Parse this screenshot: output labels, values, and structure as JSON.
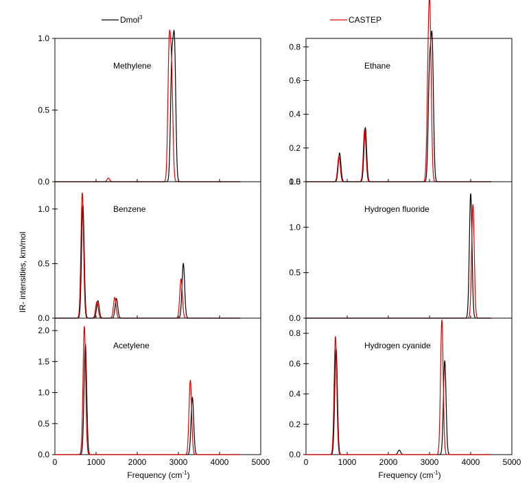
{
  "legend": {
    "placement": "top",
    "entries": [
      {
        "label": "Dmol",
        "sup": "3",
        "color": "#000000"
      },
      {
        "label": "CASTEP",
        "sup": "",
        "color": "#e00000"
      }
    ]
  },
  "ylabel": "IR- intensities, km/mol",
  "xlabel_left": "Frequency (cm",
  "xlabel_right": "Frequency (cm",
  "xlabel_sup": "-1",
  "xlabel_close": ")",
  "chart_data": [
    {
      "type": "line",
      "title": "Methylene",
      "xlim": [
        0,
        5000
      ],
      "ylim": [
        0,
        1.0
      ],
      "yticks": [
        "0.0",
        "0.5",
        "1.0"
      ],
      "yticks_val": [
        0,
        0.5,
        1.0
      ],
      "xticks": [],
      "xticks_val": [
        0,
        1000,
        2000,
        3000,
        4000,
        5000
      ],
      "series": [
        {
          "name": "Dmol3",
          "color": "#000000",
          "peaks": [
            [
              2840,
              0.78
            ],
            [
              2905,
              0.92
            ]
          ]
        },
        {
          "name": "CASTEP",
          "color": "#e00000",
          "peaks": [
            [
              1300,
              0.025
            ],
            [
              2775,
              0.89
            ],
            [
              2835,
              0.7
            ]
          ]
        }
      ]
    },
    {
      "type": "line",
      "title": "Ethane",
      "xlim": [
        0,
        5000
      ],
      "ylim": [
        0,
        0.85
      ],
      "yticks": [
        "0.0",
        "0.2",
        "0.4",
        "0.6",
        "0.8"
      ],
      "yticks_val": [
        0,
        0.2,
        0.4,
        0.6,
        0.8
      ],
      "xticks": [],
      "xticks_val": [
        0,
        1000,
        2000,
        3000,
        4000,
        5000
      ],
      "series": [
        {
          "name": "Dmol3",
          "color": "#000000",
          "peaks": [
            [
              815,
              0.17
            ],
            [
              1440,
              0.32
            ],
            [
              3000,
              0.62
            ],
            [
              3065,
              0.79
            ]
          ]
        },
        {
          "name": "CASTEP",
          "color": "#e00000",
          "peaks": [
            [
              800,
              0.15
            ],
            [
              1425,
              0.31
            ],
            [
              2970,
              0.6
            ],
            [
              3015,
              0.79
            ]
          ]
        }
      ]
    },
    {
      "type": "line",
      "title": "Benzene",
      "xlim": [
        0,
        5000
      ],
      "ylim": [
        0,
        1.25
      ],
      "yticks": [
        "0.0",
        "0.5",
        "1.0"
      ],
      "yticks_val": [
        0,
        0.5,
        1.0
      ],
      "xticks": [],
      "xticks_val": [
        0,
        1000,
        2000,
        3000,
        4000,
        5000
      ],
      "series": [
        {
          "name": "Dmol3",
          "color": "#000000",
          "peaks": [
            [
              680,
              1.04
            ],
            [
              1045,
              0.16
            ],
            [
              1495,
              0.18
            ],
            [
              3120,
              0.5
            ]
          ]
        },
        {
          "name": "CASTEP",
          "color": "#e00000",
          "peaks": [
            [
              665,
              1.15
            ],
            [
              1020,
              0.15
            ],
            [
              1455,
              0.19
            ],
            [
              3065,
              0.36
            ]
          ]
        }
      ]
    },
    {
      "type": "line",
      "title": "Hydrogen fluoride",
      "xlim": [
        0,
        5000
      ],
      "ylim": [
        0,
        1.5
      ],
      "yticks": [
        "0.0",
        "0.5",
        "1.0",
        "1.5"
      ],
      "yticks_val": [
        0,
        0.5,
        1.0,
        1.5
      ],
      "xticks": [],
      "xticks_val": [
        0,
        1000,
        2000,
        3000,
        4000,
        5000
      ],
      "series": [
        {
          "name": "Dmol3",
          "color": "#000000",
          "peaks": [
            [
              4000,
              1.37
            ]
          ]
        },
        {
          "name": "CASTEP",
          "color": "#e00000",
          "peaks": [
            [
              4055,
              1.25
            ]
          ]
        }
      ]
    },
    {
      "type": "line",
      "title": "Acetylene",
      "xlim": [
        0,
        5000
      ],
      "ylim": [
        0,
        2.2
      ],
      "yticks": [
        "0.0",
        "0.5",
        "1.0",
        "1.5",
        "2.0"
      ],
      "yticks_val": [
        0,
        0.5,
        1.0,
        1.5,
        2.0
      ],
      "xticks": [
        "0",
        "1000",
        "2000",
        "3000",
        "4000",
        "5000"
      ],
      "xticks_val": [
        0,
        1000,
        2000,
        3000,
        4000,
        5000
      ],
      "series": [
        {
          "name": "Dmol3",
          "color": "#000000",
          "peaks": [
            [
              740,
              1.78
            ],
            [
              3340,
              0.92
            ]
          ]
        },
        {
          "name": "CASTEP",
          "color": "#e00000",
          "peaks": [
            [
              715,
              2.07
            ],
            [
              3290,
              1.2
            ]
          ]
        }
      ]
    },
    {
      "type": "line",
      "title": "Hydrogen cyanide",
      "xlim": [
        0,
        5000
      ],
      "ylim": [
        0,
        0.9
      ],
      "yticks": [
        "0.0",
        "0.2",
        "0.4",
        "0.6",
        "0.8"
      ],
      "yticks_val": [
        0,
        0.2,
        0.4,
        0.6,
        0.8
      ],
      "xticks": [
        "0",
        "1000",
        "2000",
        "3000",
        "4000",
        "5000"
      ],
      "xticks_val": [
        0,
        1000,
        2000,
        3000,
        4000,
        5000
      ],
      "series": [
        {
          "name": "Dmol3",
          "color": "#000000",
          "peaks": [
            [
              730,
              0.7
            ],
            [
              2265,
              0.03
            ],
            [
              3370,
              0.62
            ]
          ]
        },
        {
          "name": "CASTEP",
          "color": "#e00000",
          "peaks": [
            [
              715,
              0.78
            ],
            [
              3300,
              0.89
            ]
          ]
        }
      ]
    }
  ]
}
